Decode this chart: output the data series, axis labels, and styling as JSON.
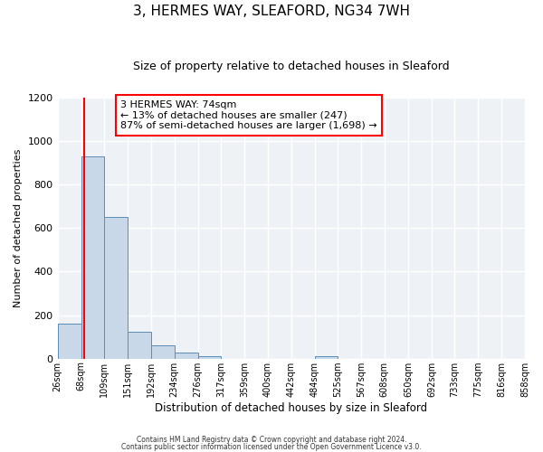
{
  "title": "3, HERMES WAY, SLEAFORD, NG34 7WH",
  "subtitle": "Size of property relative to detached houses in Sleaford",
  "xlabel": "Distribution of detached houses by size in Sleaford",
  "ylabel": "Number of detached properties",
  "bin_edges": [
    26,
    68,
    109,
    151,
    192,
    234,
    276,
    317,
    359,
    400,
    442,
    484,
    525,
    567,
    608,
    650,
    692,
    733,
    775,
    816,
    858
  ],
  "bin_heights": [
    160,
    930,
    650,
    125,
    60,
    28,
    10,
    0,
    0,
    0,
    0,
    10,
    0,
    0,
    0,
    0,
    0,
    0,
    0,
    0
  ],
  "bar_color": "#c8d8e8",
  "bar_edge_color": "#5b8db8",
  "property_line_x": 74,
  "property_line_color": "red",
  "ylim": [
    0,
    1200
  ],
  "annotation_text": "3 HERMES WAY: 74sqm\n← 13% of detached houses are smaller (247)\n87% of semi-detached houses are larger (1,698) →",
  "footer_line1": "Contains HM Land Registry data © Crown copyright and database right 2024.",
  "footer_line2": "Contains public sector information licensed under the Open Government Licence v3.0.",
  "tick_labels": [
    "26sqm",
    "68sqm",
    "109sqm",
    "151sqm",
    "192sqm",
    "234sqm",
    "276sqm",
    "317sqm",
    "359sqm",
    "400sqm",
    "442sqm",
    "484sqm",
    "525sqm",
    "567sqm",
    "608sqm",
    "650sqm",
    "692sqm",
    "733sqm",
    "775sqm",
    "816sqm",
    "858sqm"
  ],
  "background_color": "#eef2f7",
  "grid_color": "#ffffff",
  "yticks": [
    0,
    200,
    400,
    600,
    800,
    1000,
    1200
  ]
}
